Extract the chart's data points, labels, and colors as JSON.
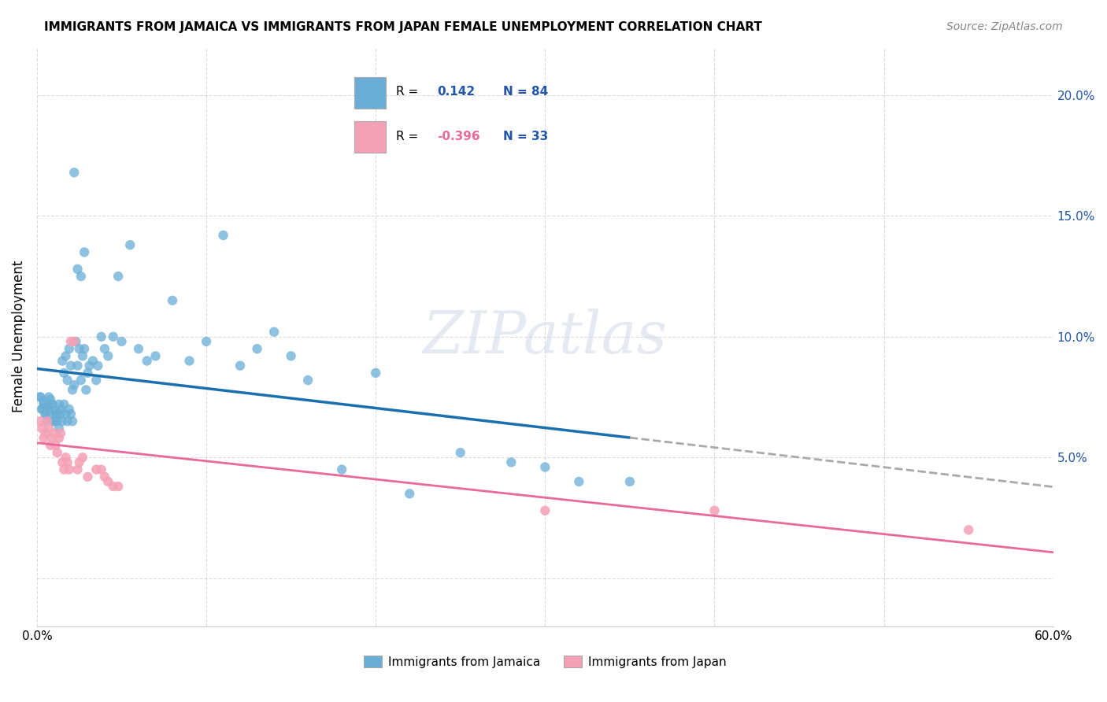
{
  "title": "IMMIGRANTS FROM JAMAICA VS IMMIGRANTS FROM JAPAN FEMALE UNEMPLOYMENT CORRELATION CHART",
  "source": "Source: ZipAtlas.com",
  "ylabel": "Female Unemployment",
  "xlim": [
    0.0,
    0.6
  ],
  "ylim": [
    -0.02,
    0.22
  ],
  "yticks": [
    0.0,
    0.05,
    0.1,
    0.15,
    0.2
  ],
  "xticks": [
    0.0,
    0.1,
    0.2,
    0.3,
    0.4,
    0.5,
    0.6
  ],
  "jamaica_color": "#6aaed6",
  "japan_color": "#f4a0b5",
  "jamaica_R": 0.142,
  "jamaica_N": 84,
  "japan_R": -0.396,
  "japan_N": 33,
  "jamaica_trend_color": "#1a6faf",
  "japan_trend_color": "#e8699a",
  "jamaica_trend_dashed_color": "#aaaaaa",
  "jamaica_x": [
    0.002,
    0.003,
    0.004,
    0.005,
    0.006,
    0.007,
    0.008,
    0.009,
    0.01,
    0.011,
    0.012,
    0.013,
    0.014,
    0.015,
    0.016,
    0.017,
    0.018,
    0.019,
    0.02,
    0.021,
    0.022,
    0.023,
    0.024,
    0.025,
    0.026,
    0.027,
    0.028,
    0.029,
    0.03,
    0.031,
    0.033,
    0.035,
    0.036,
    0.038,
    0.04,
    0.042,
    0.045,
    0.048,
    0.05,
    0.055,
    0.06,
    0.065,
    0.07,
    0.08,
    0.09,
    0.1,
    0.11,
    0.12,
    0.13,
    0.14,
    0.15,
    0.16,
    0.18,
    0.2,
    0.22,
    0.25,
    0.28,
    0.3,
    0.32,
    0.35,
    0.002,
    0.003,
    0.004,
    0.005,
    0.006,
    0.007,
    0.008,
    0.009,
    0.01,
    0.011,
    0.012,
    0.013,
    0.014,
    0.015,
    0.016,
    0.017,
    0.018,
    0.019,
    0.02,
    0.021,
    0.022,
    0.024,
    0.026,
    0.028
  ],
  "jamaica_y": [
    0.075,
    0.07,
    0.073,
    0.068,
    0.071,
    0.075,
    0.074,
    0.072,
    0.065,
    0.069,
    0.068,
    0.072,
    0.07,
    0.09,
    0.085,
    0.092,
    0.082,
    0.095,
    0.088,
    0.078,
    0.08,
    0.098,
    0.088,
    0.095,
    0.082,
    0.092,
    0.095,
    0.078,
    0.085,
    0.088,
    0.09,
    0.082,
    0.088,
    0.1,
    0.095,
    0.092,
    0.1,
    0.125,
    0.098,
    0.138,
    0.095,
    0.09,
    0.092,
    0.115,
    0.09,
    0.098,
    0.142,
    0.088,
    0.095,
    0.102,
    0.092,
    0.082,
    0.045,
    0.085,
    0.035,
    0.052,
    0.048,
    0.046,
    0.04,
    0.04,
    0.075,
    0.07,
    0.072,
    0.068,
    0.065,
    0.07,
    0.068,
    0.072,
    0.065,
    0.068,
    0.065,
    0.062,
    0.068,
    0.065,
    0.072,
    0.068,
    0.065,
    0.07,
    0.068,
    0.065,
    0.168,
    0.128,
    0.125,
    0.135
  ],
  "japan_x": [
    0.002,
    0.003,
    0.004,
    0.005,
    0.006,
    0.007,
    0.008,
    0.009,
    0.01,
    0.011,
    0.012,
    0.013,
    0.014,
    0.015,
    0.016,
    0.017,
    0.018,
    0.019,
    0.02,
    0.022,
    0.024,
    0.025,
    0.027,
    0.03,
    0.035,
    0.038,
    0.04,
    0.042,
    0.045,
    0.048,
    0.3,
    0.4,
    0.55
  ],
  "japan_y": [
    0.065,
    0.062,
    0.058,
    0.06,
    0.065,
    0.062,
    0.055,
    0.058,
    0.06,
    0.055,
    0.052,
    0.058,
    0.06,
    0.048,
    0.045,
    0.05,
    0.048,
    0.045,
    0.098,
    0.098,
    0.045,
    0.048,
    0.05,
    0.042,
    0.045,
    0.045,
    0.042,
    0.04,
    0.038,
    0.038,
    0.028,
    0.028,
    0.02
  ]
}
